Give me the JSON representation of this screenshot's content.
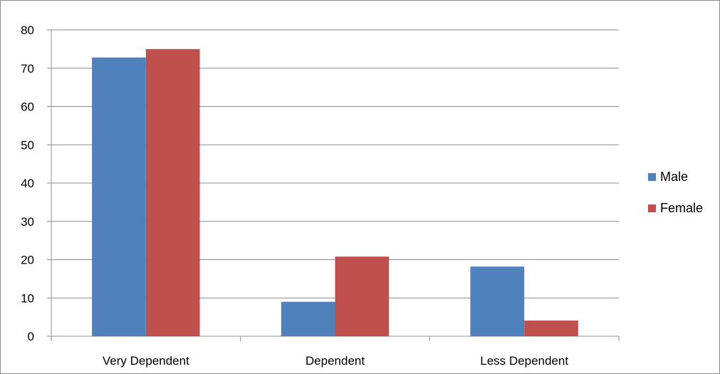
{
  "chart_data": {
    "type": "bar",
    "categories": [
      "Very Dependent",
      "Dependent",
      "Less Dependent"
    ],
    "series": [
      {
        "name": "Male",
        "values": [
          72.8,
          9,
          18.2
        ],
        "color": "#4f81bd"
      },
      {
        "name": "Female",
        "values": [
          75,
          20.8,
          4.1
        ],
        "color": "#c0504d"
      }
    ],
    "title": "",
    "xlabel": "",
    "ylabel": "",
    "ylim": [
      0,
      80
    ],
    "yticks": [
      "0",
      "10",
      "20",
      "30",
      "40",
      "50",
      "60",
      "70",
      "80"
    ],
    "grid": true,
    "legend_position": "right"
  }
}
